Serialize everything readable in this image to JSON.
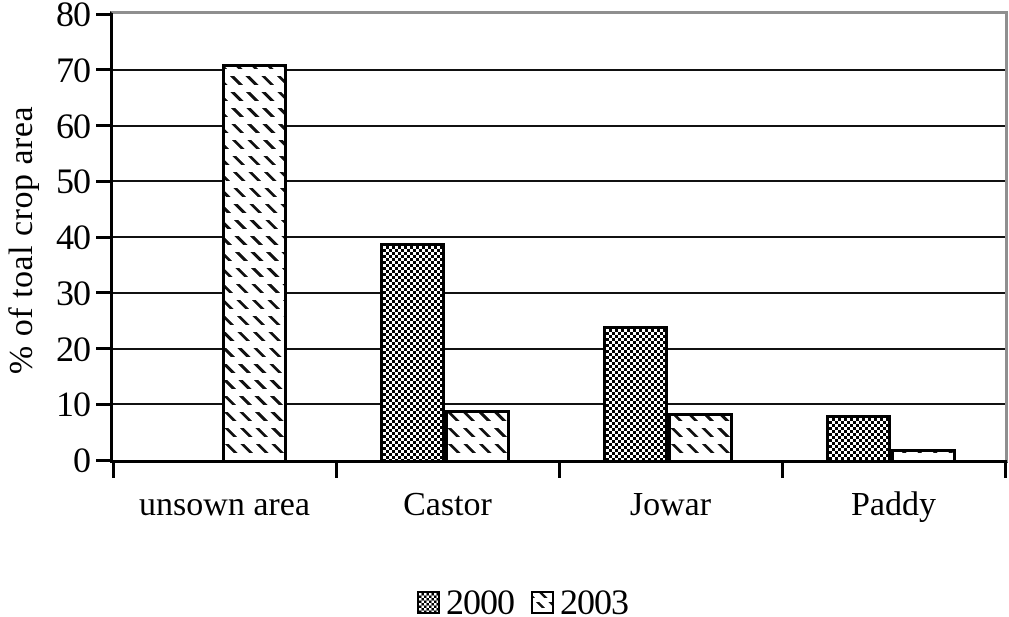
{
  "chart_data": {
    "type": "bar",
    "title": "",
    "xlabel": "",
    "ylabel": "% of toal crop area",
    "categories": [
      "unsown area",
      "Castor",
      "Jowar",
      "Paddy"
    ],
    "series": [
      {
        "name": "2000",
        "pattern": "checker",
        "values": [
          0,
          39,
          24,
          8
        ]
      },
      {
        "name": "2003",
        "pattern": "diagonal-dash",
        "values": [
          71,
          9,
          8.5,
          2
        ]
      }
    ],
    "ylim": [
      0,
      80
    ],
    "yticks": [
      0,
      10,
      20,
      30,
      40,
      50,
      60,
      70,
      80
    ],
    "grid": true,
    "legend_position": "bottom",
    "colors": {
      "bar_fill": "#ffffff",
      "bar_stroke": "#000000",
      "gridline": "#111111",
      "plot_border_gray": "#8f8f8f",
      "text": "#000000",
      "background": "#ffffff"
    }
  }
}
